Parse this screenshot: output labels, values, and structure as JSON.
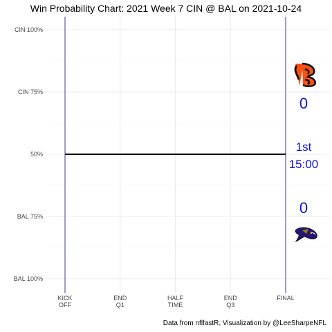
{
  "chart_data": {
    "type": "line",
    "title": "Win Probability Chart: 2021 Week 7 CIN @ BAL on 2021-10-24",
    "caption": "Data from nflfastR, Visualization by @LeeSharpeNFL",
    "y_tick_labels": [
      "CIN 100%",
      "CIN 75%",
      "50%",
      "BAL 75%",
      "BAL 100%"
    ],
    "y_tick_values": [
      1,
      0.75,
      0.5,
      0.25,
      0
    ],
    "ylim": [
      0,
      1
    ],
    "x_tick_labels": [
      [
        "KICK",
        "OFF"
      ],
      [
        "END",
        "Q1"
      ],
      [
        "HALF",
        "TIME"
      ],
      [
        "END",
        "Q3"
      ],
      [
        "FINAL"
      ]
    ],
    "x_tick_values": [
      0,
      900,
      1800,
      2700,
      3600
    ],
    "xlim": [
      0,
      3600
    ],
    "grid": true,
    "series": [
      {
        "values": [
          [
            0,
            0.5
          ],
          [
            3600,
            0.5
          ]
        ]
      }
    ],
    "vertical_lines_at": [
      0,
      3600
    ],
    "annotations": {
      "away_team": "CIN",
      "home_team": "BAL",
      "away_score": "0",
      "home_score": "0",
      "quarter": "1st",
      "clock": "15:00"
    },
    "colors": {
      "line": "#000000",
      "vline": "#3a3a9a",
      "grid": "#ebebeb",
      "annotation": "#1010e0",
      "cin_orange": "#fb4f14",
      "bal_purple": "#241773",
      "bal_gold": "#9e7c0c"
    }
  }
}
